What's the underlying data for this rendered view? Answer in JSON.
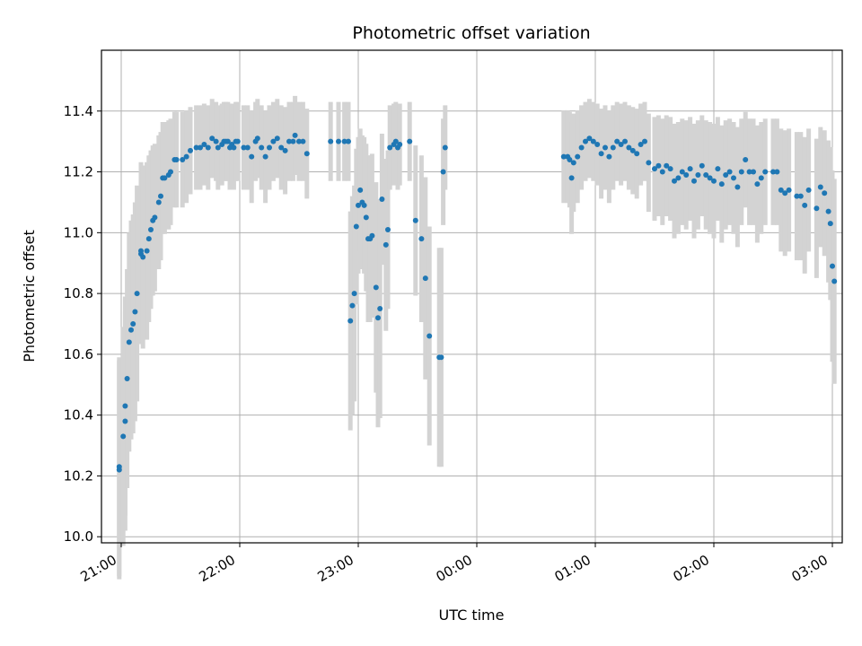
{
  "chart_data": {
    "type": "scatter",
    "title": "Photometric offset variation",
    "xlabel": "UTC time",
    "ylabel": "Photometric offset",
    "x_tick_labels": [
      "21:00",
      "22:00",
      "23:00",
      "00:00",
      "01:00",
      "02:00",
      "03:00"
    ],
    "y_tick_labels": [
      "10.0",
      "10.2",
      "10.4",
      "10.6",
      "10.8",
      "11.0",
      "11.2",
      "11.4"
    ],
    "xlim": [
      "20:50",
      "03:05"
    ],
    "ylim": [
      9.98,
      11.6
    ],
    "grid": true,
    "point_color": "#1f77b4",
    "errorbar_color": "#d3d3d3",
    "series": [
      {
        "x": [
          "20:59",
          "20:59",
          "21:01",
          "21:02",
          "21:02",
          "21:03",
          "21:04",
          "21:05",
          "21:06",
          "21:07",
          "21:08",
          "21:10",
          "21:10",
          "21:11",
          "21:13",
          "21:14",
          "21:15",
          "21:16",
          "21:17",
          "21:19",
          "21:20",
          "21:21",
          "21:22",
          "21:24",
          "21:25",
          "21:27",
          "21:28",
          "21:31",
          "21:33",
          "21:35",
          "21:38",
          "21:40",
          "21:42",
          "21:44",
          "21:46",
          "21:48",
          "21:49",
          "21:51",
          "21:52",
          "21:53",
          "21:54",
          "21:55",
          "21:56",
          "21:57",
          "21:58",
          "21:59",
          "22:02",
          "22:04",
          "22:06",
          "22:08",
          "22:09",
          "22:11",
          "22:13",
          "22:15",
          "22:17",
          "22:19",
          "22:21",
          "22:23",
          "22:25",
          "22:27",
          "22:28",
          "22:30",
          "22:32",
          "22:34",
          "22:46",
          "22:50",
          "22:53",
          "22:55",
          "22:56",
          "22:57",
          "22:58",
          "22:59",
          "23:00",
          "23:01",
          "23:02",
          "23:03",
          "23:04",
          "23:05",
          "23:06",
          "23:07",
          "23:09",
          "23:10",
          "23:11",
          "23:12",
          "23:14",
          "23:15",
          "23:16",
          "23:18",
          "23:19",
          "23:20",
          "23:21",
          "23:26",
          "23:29",
          "23:32",
          "23:34",
          "23:36",
          "23:41",
          "23:42",
          "23:43",
          "23:44",
          "00:44",
          "00:46",
          "00:47",
          "00:48",
          "00:49",
          "00:51",
          "00:53",
          "00:55",
          "00:57",
          "00:59",
          "01:01",
          "01:03",
          "01:05",
          "01:07",
          "01:09",
          "01:11",
          "01:13",
          "01:15",
          "01:17",
          "01:19",
          "01:21",
          "01:23",
          "01:25",
          "01:27",
          "01:30",
          "01:32",
          "01:34",
          "01:36",
          "01:38",
          "01:40",
          "01:42",
          "01:44",
          "01:46",
          "01:48",
          "01:50",
          "01:52",
          "01:54",
          "01:56",
          "01:58",
          "02:00",
          "02:02",
          "02:04",
          "02:06",
          "02:08",
          "02:10",
          "02:12",
          "02:14",
          "02:16",
          "02:18",
          "02:20",
          "02:22",
          "02:24",
          "02:26",
          "02:30",
          "02:32",
          "02:34",
          "02:36",
          "02:38",
          "02:42",
          "02:44",
          "02:46",
          "02:48",
          "02:52",
          "02:54",
          "02:56",
          "02:58",
          "02:59",
          "03:00",
          "03:01"
        ],
        "y": [
          10.22,
          10.23,
          10.33,
          10.38,
          10.43,
          10.52,
          10.64,
          10.68,
          10.7,
          10.74,
          10.8,
          10.93,
          10.94,
          10.92,
          10.94,
          10.98,
          11.01,
          11.04,
          11.05,
          11.1,
          11.12,
          11.18,
          11.18,
          11.19,
          11.2,
          11.24,
          11.24,
          11.24,
          11.25,
          11.27,
          11.28,
          11.28,
          11.29,
          11.28,
          11.31,
          11.3,
          11.28,
          11.29,
          11.3,
          11.3,
          11.3,
          11.28,
          11.29,
          11.28,
          11.3,
          11.3,
          11.28,
          11.28,
          11.25,
          11.3,
          11.31,
          11.28,
          11.25,
          11.28,
          11.3,
          11.31,
          11.28,
          11.27,
          11.3,
          11.3,
          11.32,
          11.3,
          11.3,
          11.26,
          11.3,
          11.3,
          11.3,
          11.3,
          10.71,
          10.76,
          10.8,
          11.02,
          11.09,
          11.14,
          11.1,
          11.09,
          11.05,
          10.98,
          10.98,
          10.99,
          10.82,
          10.72,
          10.75,
          11.11,
          10.96,
          11.01,
          11.28,
          11.29,
          11.3,
          11.28,
          11.29,
          11.3,
          11.04,
          10.98,
          10.85,
          10.66,
          10.59,
          10.59,
          11.2,
          11.28,
          11.25,
          11.25,
          11.24,
          11.18,
          11.23,
          11.25,
          11.28,
          11.3,
          11.31,
          11.3,
          11.29,
          11.26,
          11.28,
          11.25,
          11.28,
          11.3,
          11.29,
          11.3,
          11.28,
          11.27,
          11.26,
          11.29,
          11.3,
          11.23,
          11.21,
          11.22,
          11.2,
          11.22,
          11.21,
          11.17,
          11.18,
          11.2,
          11.19,
          11.21,
          11.17,
          11.19,
          11.22,
          11.19,
          11.18,
          11.17,
          11.21,
          11.16,
          11.19,
          11.2,
          11.18,
          11.15,
          11.2,
          11.24,
          11.2,
          11.2,
          11.16,
          11.18,
          11.2,
          11.2,
          11.2,
          11.14,
          11.13,
          11.14,
          11.12,
          11.12,
          11.09,
          11.14,
          11.08,
          11.15,
          11.13,
          11.07,
          11.03,
          10.89,
          10.84
        ]
      }
    ]
  }
}
